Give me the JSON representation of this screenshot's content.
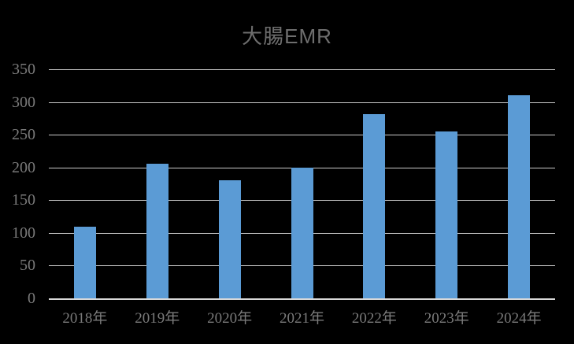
{
  "chart_data": {
    "type": "bar",
    "title": "大腸EMR",
    "categories": [
      "2018年",
      "2019年",
      "2020年",
      "2021年",
      "2022年",
      "2023年",
      "2024年"
    ],
    "values": [
      110,
      206,
      181,
      200,
      282,
      255,
      310
    ],
    "xlabel": "",
    "ylabel": "",
    "ylim": [
      0,
      350
    ],
    "yticks": [
      0,
      50,
      100,
      150,
      200,
      250,
      300,
      350
    ],
    "grid": "horizontal",
    "legend": "none",
    "colors": {
      "background": "#000000",
      "bar": "#5B9BD5",
      "title_text": "#6E6E6E",
      "axis_text": "#7A7A7A",
      "gridline": "#C9C9C9",
      "axis_line": "#D9D9D9"
    }
  }
}
